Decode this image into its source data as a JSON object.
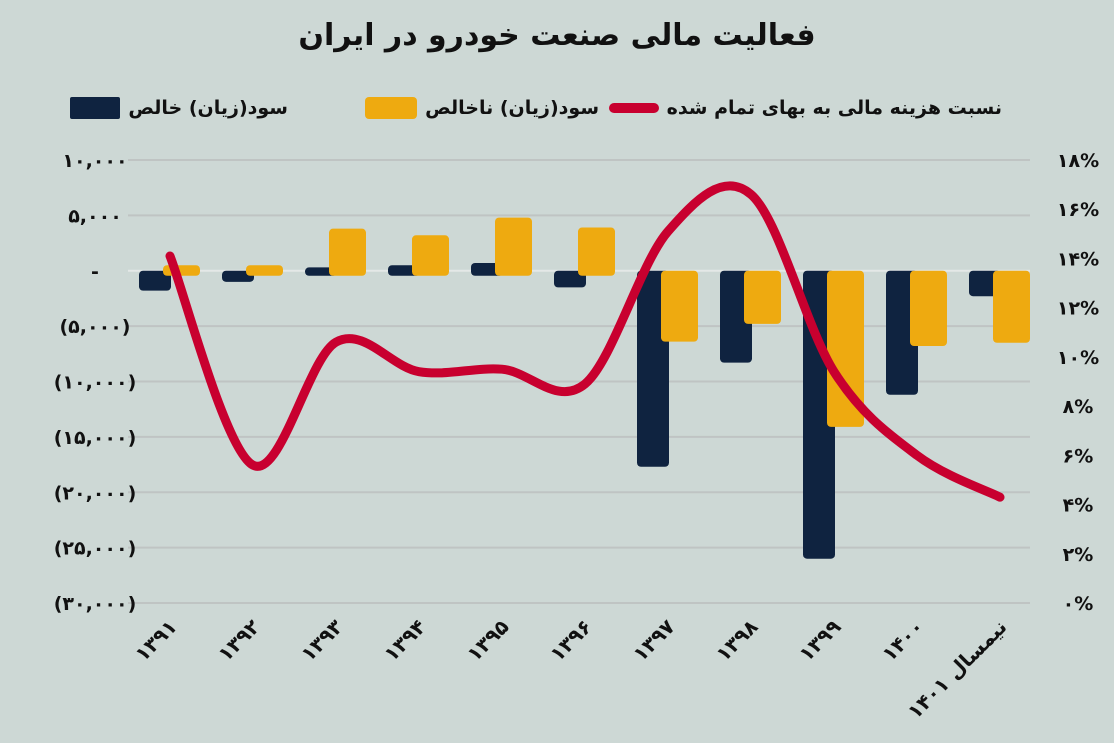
{
  "chart_data": {
    "type": "bar+line",
    "title": "فعالیت مالی صنعت خودرو در ایران",
    "categories": [
      "۱۳۹۱",
      "۱۳۹۲",
      "۱۳۹۳",
      "۱۳۹۴",
      "۱۳۹۵",
      "۱۳۹۶",
      "۱۳۹۷",
      "۱۳۹۸",
      "۱۳۹۹",
      "۱۴۰۰",
      "نیمسال ۱۴۰۱"
    ],
    "series": [
      {
        "name": "سود(زیان) خالص",
        "type": "bar",
        "axis": "left",
        "color": "#0f2340",
        "values": [
          -1800,
          -1000,
          300,
          500,
          700,
          -1500,
          -17700,
          -8300,
          -26000,
          -11200,
          -2300
        ]
      },
      {
        "name": "سود(زیان) ناخالص",
        "type": "bar",
        "axis": "left",
        "color": "#eeaa10",
        "values": [
          500,
          500,
          3800,
          3200,
          4800,
          3900,
          -6400,
          -4800,
          -14100,
          -6800,
          -6500
        ]
      },
      {
        "name": "نسبت هزینه مالی به بهای تمام شده",
        "type": "line",
        "axis": "right",
        "color": "#c8002f",
        "values": [
          14.1,
          5.6,
          10.6,
          9.4,
          9.5,
          8.9,
          15.1,
          16.6,
          9.4,
          6.0,
          4.3
        ]
      }
    ],
    "left_axis": {
      "ylim": [
        -30000,
        10000
      ],
      "ticks": [
        10000,
        5000,
        0,
        -5000,
        -10000,
        -15000,
        -20000,
        -25000,
        -30000
      ],
      "tick_labels": [
        "۱۰,۰۰۰",
        "۵,۰۰۰",
        "-",
        "(۵,۰۰۰)",
        "(۱۰,۰۰۰)",
        "(۱۵,۰۰۰)",
        "(۲۰,۰۰۰)",
        "(۲۵,۰۰۰)",
        "(۳۰,۰۰۰)"
      ]
    },
    "right_axis": {
      "ylim": [
        0,
        18
      ],
      "ticks": [
        18,
        16,
        14,
        12,
        10,
        8,
        6,
        4,
        2,
        0
      ],
      "tick_labels": [
        "۱۸%",
        "۱۶%",
        "۱۴%",
        "۱۲%",
        "۱۰%",
        "۸%",
        "۶%",
        "۴%",
        "۲%",
        "۰%"
      ]
    },
    "grid": true,
    "legend_position": "top"
  }
}
